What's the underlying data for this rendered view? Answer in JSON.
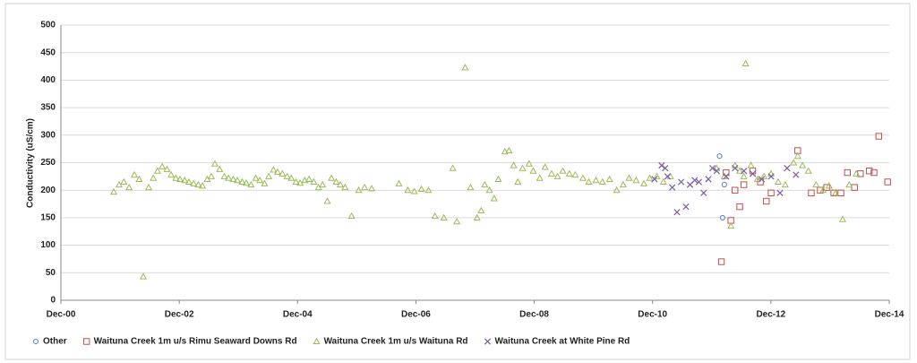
{
  "chart_data": {
    "type": "scatter",
    "y_label": "Conductivity (uS/cm)",
    "xlim": [
      2000.917,
      2014.917
    ],
    "xticks": [
      {
        "value": 2000.917,
        "label": "Dec-00"
      },
      {
        "value": 2002.917,
        "label": "Dec-02"
      },
      {
        "value": 2004.917,
        "label": "Dec-04"
      },
      {
        "value": 2006.917,
        "label": "Dec-06"
      },
      {
        "value": 2008.917,
        "label": "Dec-08"
      },
      {
        "value": 2010.917,
        "label": "Dec-10"
      },
      {
        "value": 2012.917,
        "label": "Dec-12"
      },
      {
        "value": 2014.917,
        "label": "Dec-14"
      }
    ],
    "ylim": [
      0,
      500
    ],
    "yticks": [
      0,
      50,
      100,
      150,
      200,
      250,
      300,
      350,
      400,
      450,
      500
    ],
    "grid": true,
    "legend": "bottom",
    "series": [
      {
        "name": "Other",
        "color": "#4f81bd",
        "marker": "circle",
        "x": [
          2012.05,
          2012.1,
          2012.13
        ],
        "values": [
          262,
          150,
          210
        ]
      },
      {
        "name": "Waituna Creek 1m u/s Rimu Seaward Downs Rd",
        "color": "#c0504d",
        "marker": "square",
        "x": [
          2012.08,
          2012.16,
          2012.24,
          2012.31,
          2012.39,
          2012.46,
          2012.61,
          2012.74,
          2012.84,
          2012.92,
          2013.37,
          2013.6,
          2013.75,
          2013.86,
          2013.98,
          2014.1,
          2014.21,
          2014.33,
          2014.43,
          2014.58,
          2014.66,
          2014.74,
          2014.89
        ],
        "values": [
          70,
          232,
          145,
          200,
          170,
          210,
          235,
          215,
          180,
          195,
          272,
          195,
          200,
          205,
          195,
          195,
          232,
          205,
          230,
          235,
          232,
          298,
          215
        ]
      },
      {
        "name": "Waituna Creek 1m u/s Waituna Rd",
        "color": "#9bbb59",
        "marker": "triangle",
        "x": [
          2001.81,
          2001.9,
          2001.98,
          2002.07,
          2002.16,
          2002.24,
          2002.31,
          2002.4,
          2002.48,
          2002.55,
          2002.63,
          2002.71,
          2002.78,
          2002.86,
          2002.93,
          2003.01,
          2003.08,
          2003.16,
          2003.24,
          2003.31,
          2003.39,
          2003.46,
          2003.52,
          2003.6,
          2003.68,
          2003.75,
          2003.83,
          2003.9,
          2003.98,
          2004.05,
          2004.13,
          2004.21,
          2004.28,
          2004.36,
          2004.43,
          2004.51,
          2004.58,
          2004.66,
          2004.74,
          2004.81,
          2004.89,
          2004.96,
          2005.04,
          2005.11,
          2005.19,
          2005.27,
          2005.34,
          2005.42,
          2005.49,
          2005.57,
          2005.64,
          2005.72,
          2005.83,
          2005.95,
          2006.05,
          2006.17,
          2006.63,
          2006.78,
          2006.89,
          2007.01,
          2007.13,
          2007.24,
          2007.39,
          2007.54,
          2007.61,
          2007.75,
          2007.84,
          2007.95,
          2008.02,
          2008.08,
          2008.16,
          2008.24,
          2008.31,
          2008.42,
          2008.49,
          2008.57,
          2008.64,
          2008.72,
          2008.83,
          2008.9,
          2009.01,
          2009.1,
          2009.21,
          2009.31,
          2009.4,
          2009.51,
          2009.61,
          2009.74,
          2009.84,
          2009.96,
          2010.07,
          2010.19,
          2010.31,
          2010.42,
          2010.52,
          2010.64,
          2010.77,
          2010.87,
          2010.99,
          2011.1,
          2011.22,
          2012.0,
          2012.13,
          2012.24,
          2012.31,
          2012.39,
          2012.46,
          2012.49,
          2012.58,
          2012.69,
          2012.8,
          2012.92,
          2013.04,
          2013.16,
          2013.3,
          2013.37,
          2013.45,
          2013.55,
          2013.68,
          2013.8,
          2013.9,
          2014.01,
          2014.13,
          2014.24,
          2014.36
        ],
        "values": [
          197,
          210,
          215,
          205,
          228,
          220,
          43,
          205,
          222,
          235,
          243,
          238,
          228,
          222,
          220,
          218,
          215,
          212,
          210,
          208,
          220,
          225,
          248,
          238,
          225,
          222,
          220,
          218,
          215,
          213,
          210,
          222,
          218,
          212,
          225,
          237,
          233,
          230,
          225,
          222,
          215,
          213,
          218,
          220,
          215,
          205,
          210,
          180,
          222,
          215,
          210,
          205,
          153,
          200,
          205,
          203,
          212,
          200,
          198,
          202,
          200,
          153,
          150,
          240,
          143,
          423,
          205,
          150,
          163,
          210,
          200,
          185,
          220,
          270,
          272,
          245,
          215,
          240,
          248,
          235,
          222,
          242,
          230,
          225,
          235,
          230,
          228,
          222,
          215,
          218,
          215,
          220,
          200,
          210,
          222,
          218,
          212,
          222,
          225,
          215,
          225,
          240,
          225,
          135,
          245,
          235,
          225,
          430,
          245,
          220,
          225,
          230,
          215,
          210,
          250,
          262,
          245,
          235,
          210,
          200,
          208,
          195,
          147,
          210,
          230
        ]
      },
      {
        "name": "Waituna Creek at White Pine Rd",
        "color": "#8064a2",
        "marker": "x",
        "x": [
          2010.95,
          2011.07,
          2011.13,
          2011.17,
          2011.25,
          2011.33,
          2011.4,
          2011.48,
          2011.55,
          2011.63,
          2011.7,
          2011.78,
          2011.86,
          2011.93,
          2012.0,
          2012.16,
          2012.31,
          2012.46,
          2012.61,
          2012.76,
          2012.92,
          2013.07,
          2013.19,
          2013.34
        ],
        "values": [
          220,
          245,
          240,
          225,
          205,
          160,
          215,
          170,
          210,
          218,
          215,
          195,
          220,
          240,
          235,
          225,
          240,
          235,
          230,
          220,
          225,
          195,
          240,
          228
        ]
      }
    ]
  }
}
